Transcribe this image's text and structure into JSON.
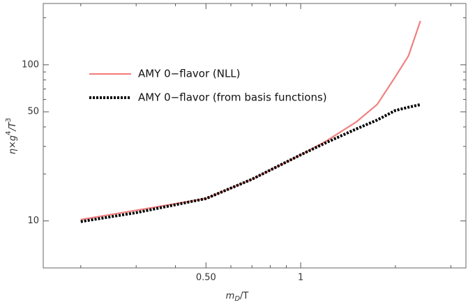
{
  "chart_data": {
    "type": "line",
    "xlabel": [
      "m",
      "D",
      "/T"
    ],
    "ylabel": [
      "η×g",
      "4",
      "/T",
      "3"
    ],
    "x": [
      0.2,
      0.3,
      0.5,
      0.7,
      1,
      1.2,
      1.5,
      1.75,
      2,
      2.2,
      2.4
    ],
    "series": [
      {
        "name": "AMY 0−flavor (NLL)",
        "color": "#f08080",
        "dash": false,
        "values": [
          10.2,
          11.7,
          13.9,
          18.5,
          26.5,
          32.3,
          43,
          55.7,
          84,
          114,
          191
        ]
      },
      {
        "name": "AMY 0−flavor (from basis functions)",
        "color": "#000000",
        "dash": true,
        "values": [
          9.9,
          11.3,
          13.9,
          18.5,
          26.5,
          31.6,
          38.8,
          44.3,
          51,
          53.5,
          55.6
        ]
      }
    ],
    "xscale": "log",
    "yscale": "log",
    "xlim": [
      0.152,
      3.35
    ],
    "ylim": [
      5,
      247
    ],
    "xticks": [
      {
        "value": 0.5,
        "label": "0.50"
      },
      1
    ],
    "yticks": [
      10,
      50,
      100
    ],
    "xminor": [
      0.2,
      0.3,
      0.4,
      0.6,
      0.7,
      0.8,
      0.9,
      2,
      3
    ],
    "yminor": [
      20,
      30,
      40,
      60,
      70,
      80,
      90,
      200
    ],
    "legend": "upper left"
  }
}
